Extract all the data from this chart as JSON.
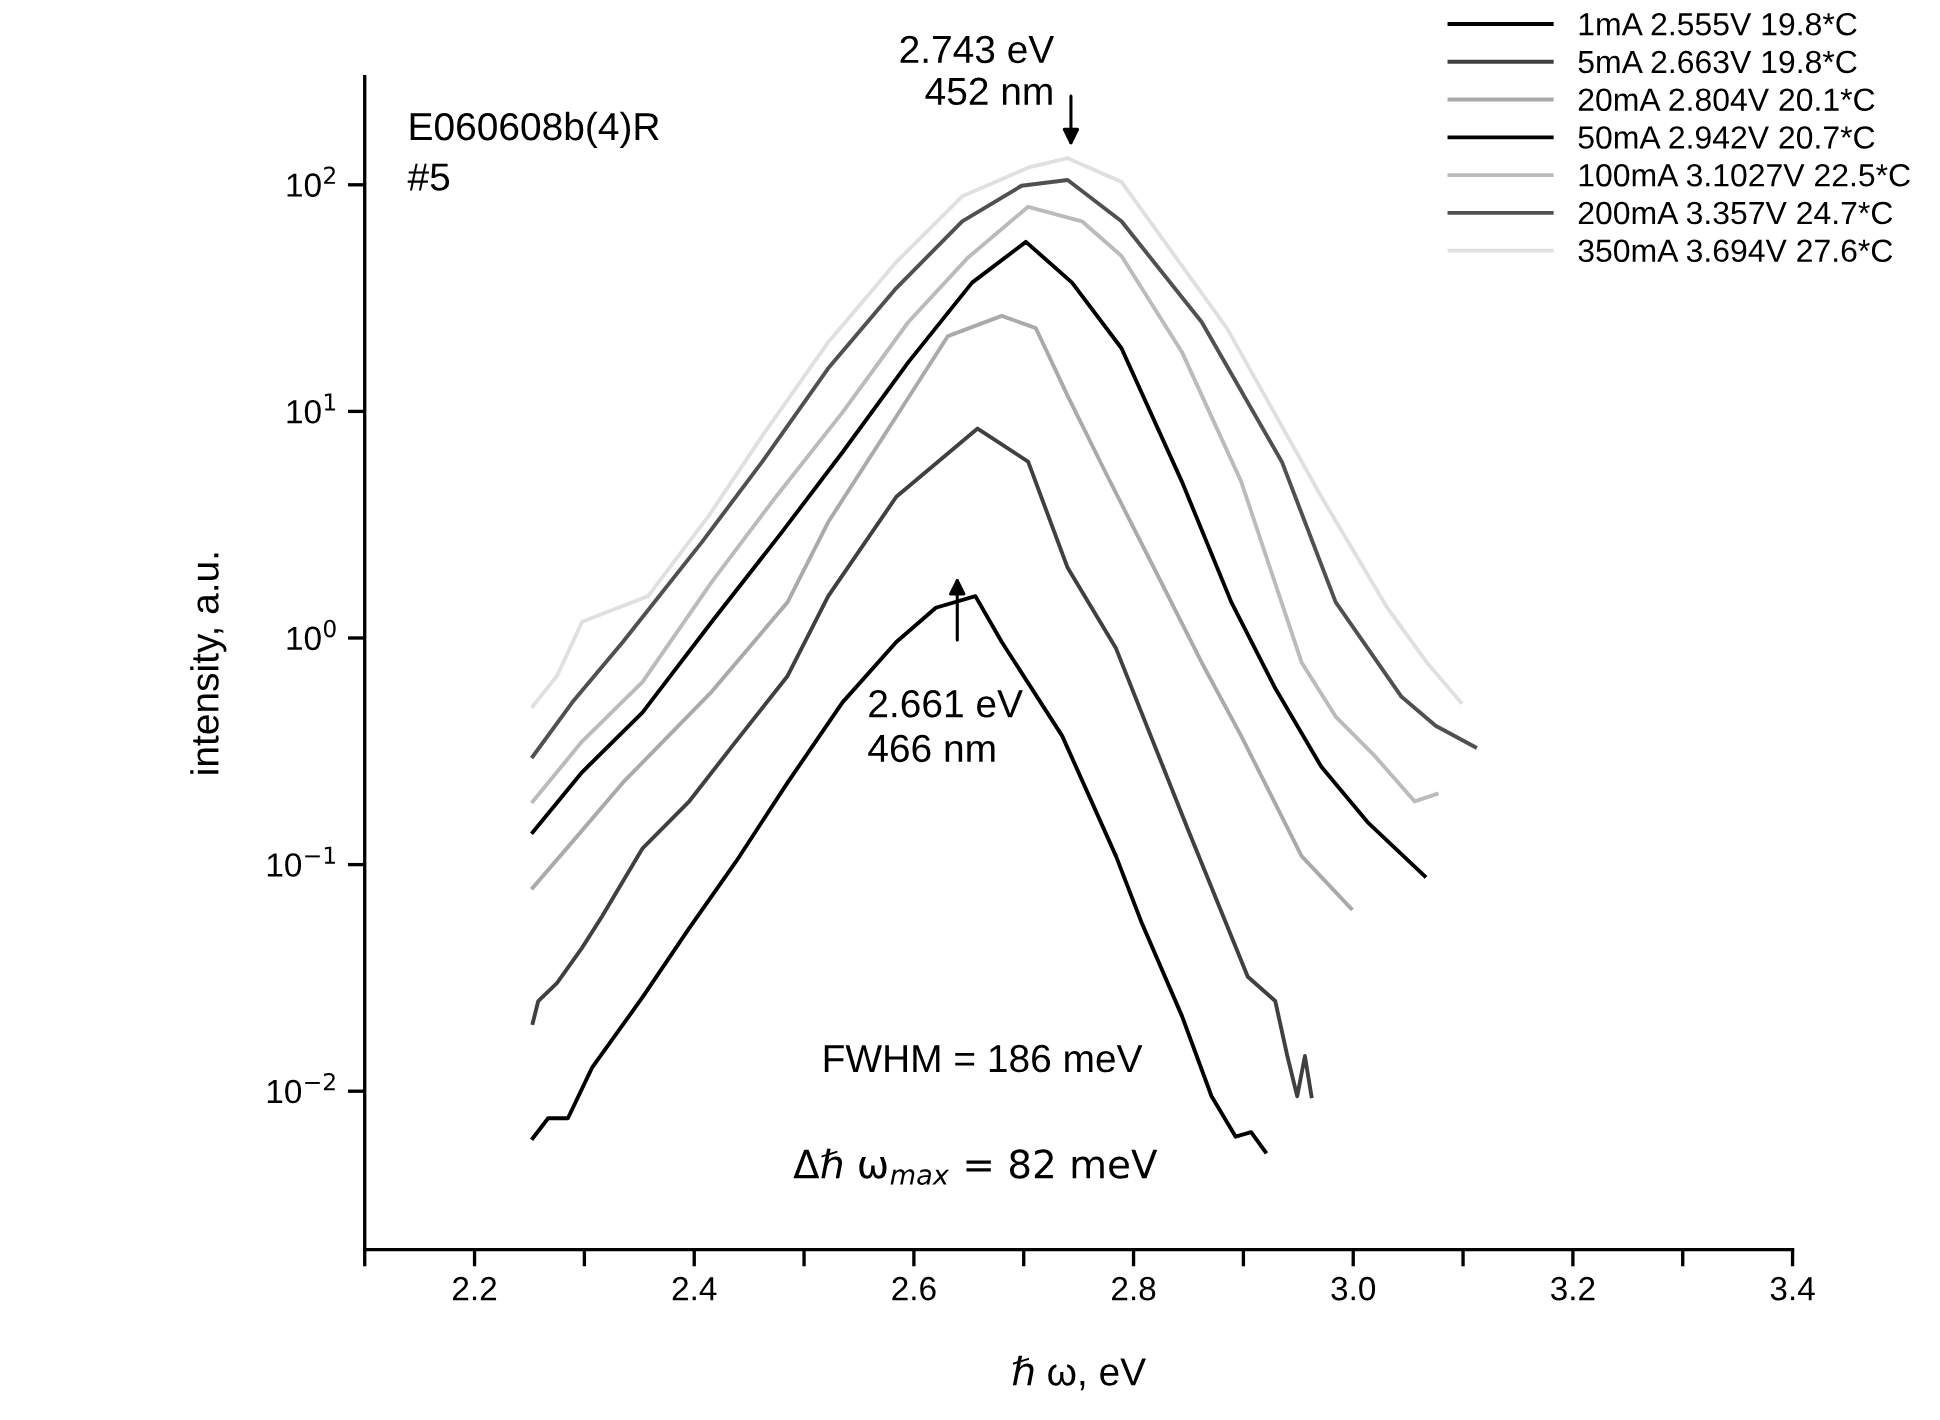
{
  "chart_data": {
    "type": "line",
    "xlabel": "ℏ ω, eV",
    "ylabel": "intensity, a.u.",
    "log": "y",
    "legend": "top right",
    "grid": false,
    "line_style": "solid",
    "marker": "none",
    "xlim": [
      2.1,
      3.4
    ],
    "xticks": [
      {
        "value": 2.1,
        "label": null
      },
      2.2,
      {
        "value": 2.3,
        "label": null
      },
      2.4,
      {
        "value": 2.5,
        "label": null
      },
      2.6,
      {
        "value": 2.7,
        "label": null
      },
      2.8,
      {
        "value": 2.9,
        "label": null
      },
      {
        "value": 3.0,
        "label": "3.0"
      },
      {
        "value": 3.1,
        "label": null
      },
      3.2,
      {
        "value": 3.3,
        "label": null
      },
      3.4
    ],
    "ylim": [
      0.002,
      300
    ],
    "yticks": [
      {
        "value": 0.01,
        "label": "10$^{−2}$"
      },
      {
        "value": 0.1,
        "label": "10$^{−1}$"
      },
      {
        "value": 1,
        "label": "10$^{0}$"
      },
      {
        "value": 10,
        "label": "10$^{1}$"
      },
      {
        "value": 100,
        "label": "10$^{2}$"
      }
    ],
    "series": [
      {
        "name": "1mA 2.555V 19.8*C",
        "color": "#000000",
        "x": [
          2.253,
          2.267,
          2.285,
          2.307,
          2.353,
          2.395,
          2.438,
          2.485,
          2.535,
          2.584,
          2.62,
          2.656,
          2.68,
          2.735,
          2.784,
          2.807,
          2.844,
          2.871,
          2.893,
          2.907,
          2.92
        ],
        "values": [
          0.0062,
          0.0076,
          0.0076,
          0.0127,
          0.026,
          0.052,
          0.103,
          0.23,
          0.52,
          0.96,
          1.36,
          1.53,
          0.96,
          0.37,
          0.109,
          0.056,
          0.0215,
          0.0095,
          0.0063,
          0.0066,
          0.0054
        ]
      },
      {
        "name": "5mA 2.663V 19.8*C",
        "color": "#404040",
        "x": [
          2.253,
          2.258,
          2.275,
          2.298,
          2.316,
          2.353,
          2.395,
          2.438,
          2.485,
          2.522,
          2.584,
          2.658,
          2.704,
          2.74,
          2.784,
          2.849,
          2.904,
          2.929,
          2.94,
          2.949,
          2.956,
          2.962
        ],
        "values": [
          0.02,
          0.025,
          0.03,
          0.043,
          0.059,
          0.118,
          0.189,
          0.35,
          0.68,
          1.53,
          4.2,
          8.4,
          6.0,
          2.04,
          0.9,
          0.145,
          0.032,
          0.025,
          0.0143,
          0.0095,
          0.0143,
          0.0095
        ]
      },
      {
        "name": "20mA 2.804V 20.1*C",
        "color": "#aaaaaa",
        "x": [
          2.253,
          2.289,
          2.335,
          2.416,
          2.485,
          2.522,
          2.584,
          2.631,
          2.68,
          2.711,
          2.74,
          2.776,
          2.825,
          2.862,
          2.898,
          2.953,
          2.998
        ],
        "values": [
          0.079,
          0.126,
          0.23,
          0.58,
          1.44,
          3.25,
          9.5,
          21.5,
          26.4,
          23.3,
          11.7,
          5.2,
          1.77,
          0.78,
          0.37,
          0.109,
          0.064
        ]
      },
      {
        "name": "50mA 2.942V 20.7*C",
        "color": "#000000",
        "x": [
          2.253,
          2.298,
          2.353,
          2.416,
          2.48,
          2.535,
          2.595,
          2.653,
          2.702,
          2.744,
          2.789,
          2.844,
          2.889,
          2.929,
          2.971,
          3.013,
          3.065
        ],
        "values": [
          0.139,
          0.256,
          0.47,
          1.18,
          2.94,
          6.6,
          16.5,
          37,
          56,
          37,
          19.0,
          4.9,
          1.44,
          0.6,
          0.27,
          0.154,
          0.089
        ]
      },
      {
        "name": "100mA 3.1027V 22.5*C",
        "color": "#bbbbbb",
        "x": [
          2.253,
          2.298,
          2.353,
          2.416,
          2.471,
          2.535,
          2.595,
          2.649,
          2.704,
          2.753,
          2.789,
          2.844,
          2.898,
          2.953,
          2.984,
          3.02,
          3.056,
          3.076
        ],
        "values": [
          0.19,
          0.35,
          0.64,
          1.77,
          4.0,
          9.9,
          24.8,
          47.6,
          80,
          69,
          48.5,
          18.3,
          4.9,
          0.78,
          0.45,
          0.3,
          0.19,
          0.205
        ]
      },
      {
        "name": "200mA 3.357V 24.7*C",
        "color": "#505050",
        "x": [
          2.253,
          2.289,
          2.335,
          2.407,
          2.462,
          2.522,
          2.584,
          2.644,
          2.698,
          2.74,
          2.789,
          2.862,
          2.935,
          2.984,
          3.044,
          3.075,
          3.111
        ],
        "values": [
          0.3,
          0.52,
          0.96,
          2.65,
          6.0,
          15.5,
          35,
          69,
          99,
          105,
          69,
          24.8,
          6.0,
          1.44,
          0.55,
          0.41,
          0.33
        ]
      },
      {
        "name": "350mA 3.694V 27.6*C",
        "color": "#e0e0e0",
        "x": [
          2.253,
          2.275,
          2.298,
          2.358,
          2.413,
          2.462,
          2.522,
          2.584,
          2.644,
          2.704,
          2.74,
          2.789,
          2.885,
          2.971,
          3.031,
          3.067,
          3.098
        ],
        "values": [
          0.5,
          0.68,
          1.18,
          1.53,
          3.45,
          7.8,
          20.2,
          45.6,
          89,
          119,
          131,
          103,
          23.3,
          4.2,
          1.36,
          0.78,
          0.52
        ]
      }
    ],
    "annotations": [
      "E060608b(4)R\n#5",
      {
        "text": "2.743 eV\n452 nm",
        "x": 2.743,
        "y": 140
      },
      "2.661 eV\n466 nm",
      "FWHM = 186 meV",
      "Δℏ ω$_{max}$ = 82 meV"
    ]
  }
}
